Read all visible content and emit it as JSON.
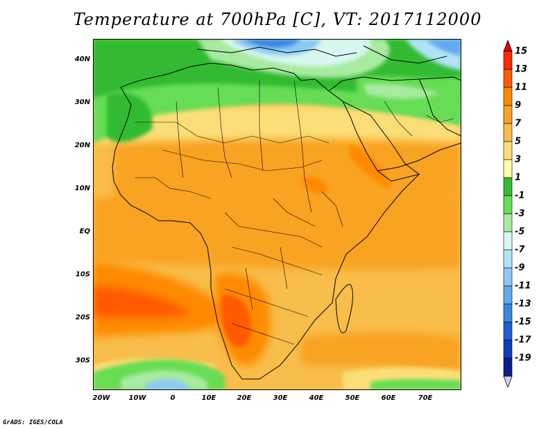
{
  "title": "Temperature at 700hPa [C], VT: 2017112000",
  "credit": "GrADS: IGES/COLA",
  "map": {
    "projection": "lat-lon",
    "lon_range": [
      -23,
      80
    ],
    "lat_range": [
      -37,
      45
    ],
    "lat_labels": [
      "40N",
      "30N",
      "20N",
      "10N",
      "EQ",
      "10S",
      "20S",
      "30S"
    ],
    "lat_values": [
      40,
      30,
      20,
      10,
      0,
      -10,
      -20,
      -30
    ],
    "lon_labels": [
      "20W",
      "10W",
      "0",
      "10E",
      "20E",
      "30E",
      "40E",
      "50E",
      "60E",
      "70E"
    ],
    "lon_values": [
      -20,
      -10,
      0,
      10,
      20,
      30,
      40,
      50,
      60,
      70
    ],
    "field": "Temperature at 700hPa",
    "units": "C"
  },
  "colorbar": {
    "levels": [
      "15",
      "13",
      "11",
      "9",
      "7",
      "5",
      "3",
      "1",
      "-1",
      "-3",
      "-5",
      "-7",
      "-9",
      "-11",
      "-13",
      "-15",
      "-17",
      "-19"
    ],
    "colors": [
      "#ff2a00",
      "#ff5a00",
      "#ff8a00",
      "#f9a320",
      "#f8bd4a",
      "#fcde78",
      "#ffffaa",
      "#33bb33",
      "#66dd55",
      "#a8eaa0",
      "#d8f7f0",
      "#b3e2f7",
      "#8ccaf2",
      "#60aaee",
      "#3a86e0",
      "#1f5fd3",
      "#0f3fb8",
      "#0a1f8a"
    ],
    "top_color": "#e10000",
    "bottom_color": "#dcd0f5"
  }
}
